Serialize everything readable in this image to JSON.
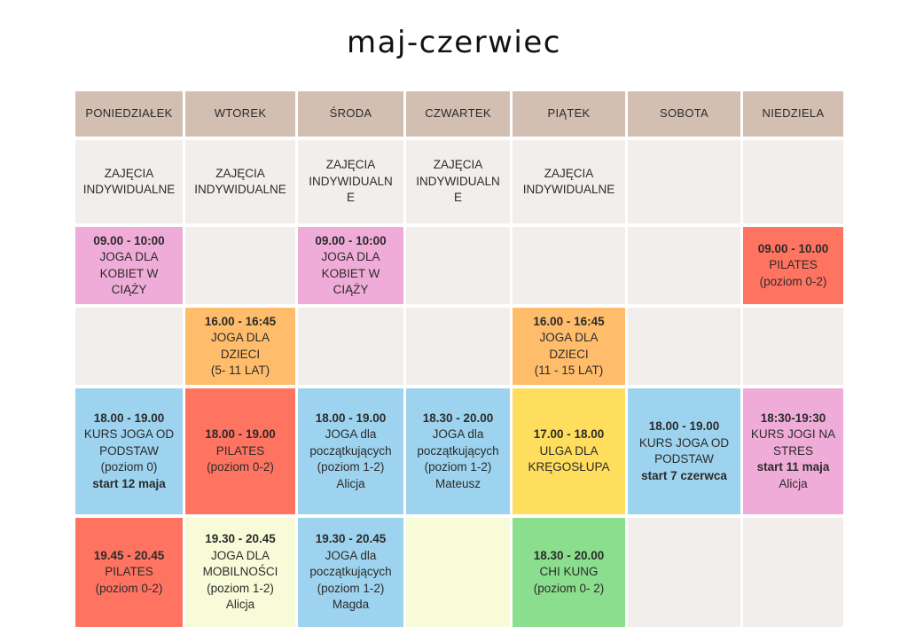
{
  "title": "maj-czerwiec",
  "days": [
    "PONIEDZIAŁEK",
    "WTOREK",
    "ŚRODA",
    "CZWARTEK",
    "PIĄTEK",
    "SOBOTA",
    "NIEDZIELA"
  ],
  "colors": {
    "header": "#d3bfb2",
    "empty": "#f2eeec",
    "pink": "#f0acd8",
    "orange": "#ffbd6c",
    "blue": "#9dd3ee",
    "red": "#ff7461",
    "yellow": "#ffdd5d",
    "cream": "#f8fbd8",
    "green": "#8bde8e"
  },
  "rows": [
    [
      {
        "lines": [
          "ZAJĘCIA",
          "INDYWIDUALNE"
        ]
      },
      {
        "lines": [
          "ZAJĘCIA",
          "INDYWIDUALNE"
        ]
      },
      {
        "lines": [
          "ZAJĘCIA",
          "INDYWIDUALN",
          "E"
        ]
      },
      {
        "lines": [
          "ZAJĘCIA",
          "INDYWIDUALN",
          "E"
        ]
      },
      {
        "lines": [
          "ZAJĘCIA",
          "INDYWIDUALNE"
        ]
      },
      {
        "lines": []
      },
      {
        "lines": []
      }
    ],
    [
      {
        "time": "09.00 - 10:00",
        "lines": [
          "JOGA DLA",
          "KOBIET W",
          "CIĄŻY"
        ],
        "color": "pink"
      },
      {
        "lines": []
      },
      {
        "time": "09.00 - 10:00",
        "lines": [
          "JOGA DLA",
          "KOBIET W",
          "CIĄŻY"
        ],
        "color": "pink"
      },
      {
        "lines": []
      },
      {
        "lines": []
      },
      {
        "lines": []
      },
      {
        "time": "09.00 - 10.00",
        "lines": [
          "PILATES",
          "(poziom 0-2)"
        ],
        "color": "red"
      }
    ],
    [
      {
        "lines": []
      },
      {
        "time": "16.00 - 16:45",
        "lines": [
          "JOGA DLA",
          "DZIECI",
          "(5- 11 LAT)"
        ],
        "color": "orange"
      },
      {
        "lines": []
      },
      {
        "lines": []
      },
      {
        "time": "16.00 - 16:45",
        "lines": [
          "JOGA DLA",
          "DZIECI",
          "(11 - 15 LAT)"
        ],
        "color": "orange"
      },
      {
        "lines": []
      },
      {
        "lines": []
      }
    ],
    [
      {
        "time": "18.00 - 19.00",
        "lines": [
          "KURS JOGA OD",
          "PODSTAW",
          "(poziom 0)"
        ],
        "extra": "start 12 maja",
        "color": "blue"
      },
      {
        "time": "18.00 - 19.00",
        "lines": [
          "PILATES",
          "(poziom 0-2)"
        ],
        "color": "red"
      },
      {
        "time": "18.00 - 19.00",
        "lines": [
          "JOGA dla",
          "początkujących",
          "(poziom 1-2)",
          "Alicja"
        ],
        "color": "blue"
      },
      {
        "time": "18.30 - 20.00",
        "lines": [
          "JOGA dla",
          "początkujących",
          "(poziom 1-2)",
          "Mateusz"
        ],
        "color": "blue"
      },
      {
        "time": "17.00 - 18.00",
        "lines": [
          "ULGA DLA",
          "KRĘGOSŁUPA"
        ],
        "color": "yellow"
      },
      {
        "time": "18.00 - 19.00",
        "lines": [
          "KURS JOGA OD",
          "PODSTAW"
        ],
        "extra": "start  7 czerwca",
        "color": "blue"
      },
      {
        "time": "18:30-19:30",
        "lines": [
          "KURS JOGI NA",
          "STRES"
        ],
        "extra": "start 11 maja",
        "after": "Alicja",
        "color": "pink"
      }
    ],
    [
      {
        "time": "19.45 - 20.45",
        "lines": [
          "PILATES",
          "(poziom 0-2)"
        ],
        "color": "red"
      },
      {
        "time": "19.30 - 20.45",
        "lines": [
          "JOGA DLA",
          "MOBILNOŚCI",
          "(poziom 1-2)",
          "Alicja"
        ],
        "color": "cream"
      },
      {
        "time": "19.30 - 20.45",
        "lines": [
          "JOGA dla",
          "początkujących",
          "(poziom 1-2)",
          "Magda"
        ],
        "color": "blue"
      },
      {
        "lines": [],
        "color": "cream"
      },
      {
        "time": "18.30 - 20.00",
        "lines": [
          "CHI KUNG",
          "(poziom 0-  2)"
        ],
        "color": "green"
      },
      {
        "lines": []
      },
      {
        "lines": []
      }
    ]
  ]
}
